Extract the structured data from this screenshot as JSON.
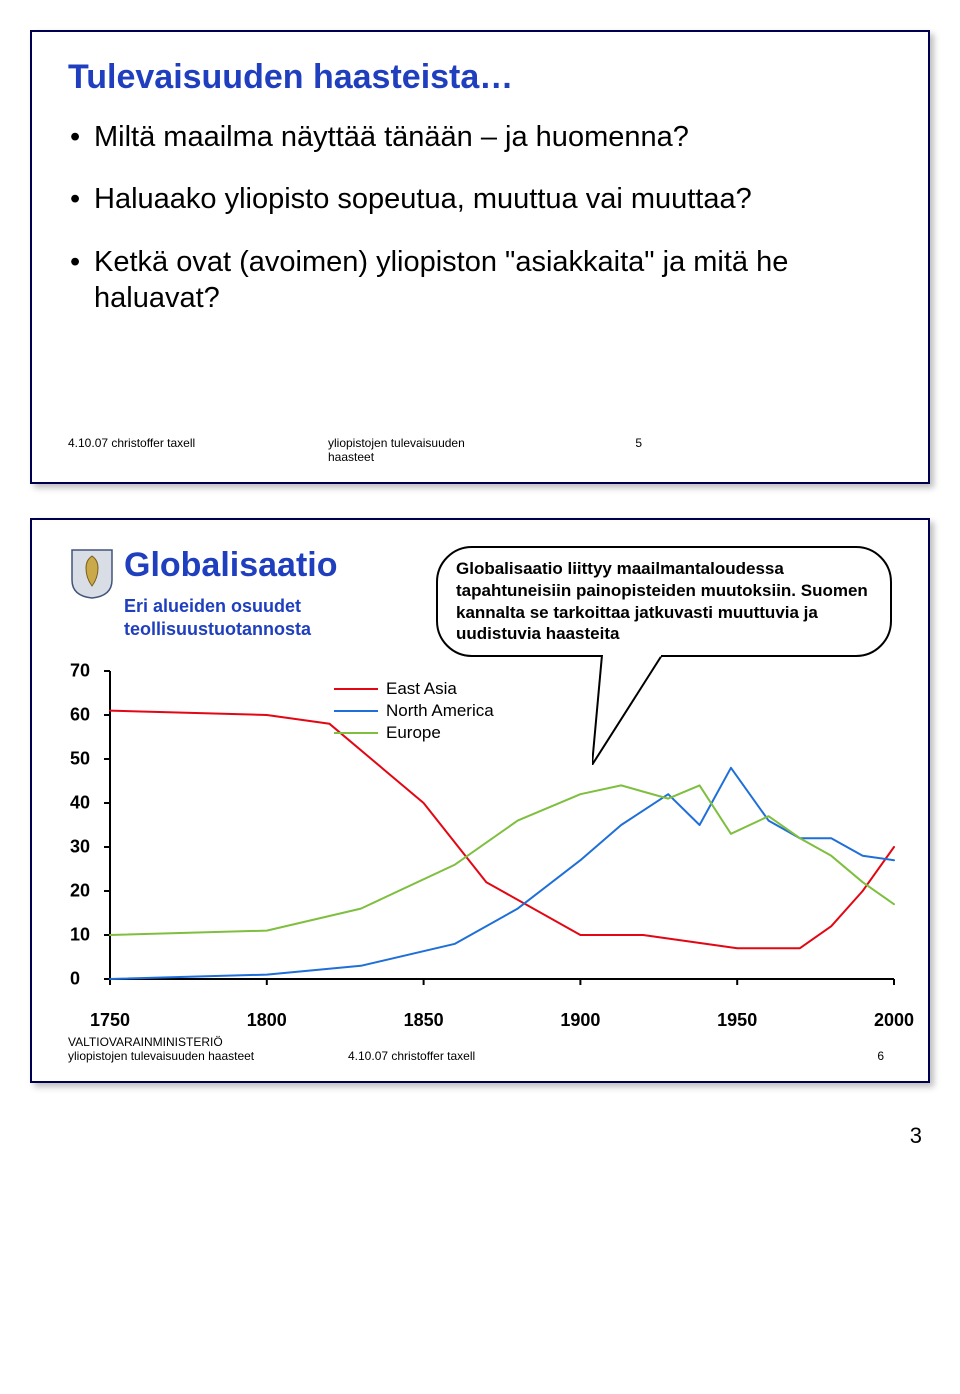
{
  "slide1": {
    "title_color": "#1f3fbf",
    "title": "Tulevaisuuden haasteista…",
    "bullets": [
      "Miltä maailma näyttää tänään – ja huomenna?",
      "Haluaako yliopisto sopeutua, muuttua vai muuttaa?",
      "Ketkä ovat (avoimen) yliopiston \"asiakkaita\" ja mitä he haluavat?"
    ],
    "footer": {
      "left": "4.10.07 christoffer taxell",
      "center": "yliopistojen tulevaisuuden\nhaasteet",
      "page": "5"
    }
  },
  "slide2": {
    "globalisaatio_color": "#1f3fbf",
    "title": "Globalisaatio",
    "subtitle_color": "#1f3fbf",
    "subtitle": "Eri alueiden osuudet teollisuustuotannosta",
    "callout": "Globalisaatio liittyy maailmantaloudessa tapahtuneisiin painopisteiden muutoksiin. Suomen kannalta se tarkoittaa jatkuvasti muuttuvia ja uudistuvia haasteita",
    "chart": {
      "type": "line",
      "background_color": "#ffffff",
      "axis_color": "#000000",
      "line_width": 2,
      "xlim": [
        1750,
        2000
      ],
      "ylim": [
        0,
        70
      ],
      "ytick_step": 10,
      "xtick_step": 50,
      "yticks": [
        0,
        10,
        20,
        30,
        40,
        50,
        60,
        70
      ],
      "xticks": [
        1750,
        1800,
        1850,
        1900,
        1950,
        2000
      ],
      "series": [
        {
          "name": "East Asia",
          "color": "#e30613",
          "data": [
            [
              1750,
              61
            ],
            [
              1800,
              60
            ],
            [
              1820,
              58
            ],
            [
              1850,
              40
            ],
            [
              1870,
              22
            ],
            [
              1900,
              10
            ],
            [
              1920,
              10
            ],
            [
              1950,
              7
            ],
            [
              1970,
              7
            ],
            [
              1980,
              12
            ],
            [
              1990,
              20
            ],
            [
              2000,
              30
            ]
          ]
        },
        {
          "name": "North America",
          "color": "#1f6fd8",
          "data": [
            [
              1750,
              0
            ],
            [
              1800,
              1
            ],
            [
              1830,
              3
            ],
            [
              1860,
              8
            ],
            [
              1880,
              16
            ],
            [
              1900,
              27
            ],
            [
              1913,
              35
            ],
            [
              1928,
              42
            ],
            [
              1938,
              35
            ],
            [
              1948,
              48
            ],
            [
              1960,
              36
            ],
            [
              1970,
              32
            ],
            [
              1980,
              32
            ],
            [
              1990,
              28
            ],
            [
              2000,
              27
            ]
          ]
        },
        {
          "name": "Europe",
          "color": "#7fbf3f",
          "data": [
            [
              1750,
              10
            ],
            [
              1800,
              11
            ],
            [
              1830,
              16
            ],
            [
              1860,
              26
            ],
            [
              1880,
              36
            ],
            [
              1900,
              42
            ],
            [
              1913,
              44
            ],
            [
              1928,
              41
            ],
            [
              1938,
              44
            ],
            [
              1948,
              33
            ],
            [
              1960,
              37
            ],
            [
              1970,
              32
            ],
            [
              1980,
              28
            ],
            [
              1990,
              22
            ],
            [
              2000,
              17
            ]
          ]
        }
      ],
      "legend_fontsize": 17,
      "label_fontsize_pt": 18,
      "label_bold": true
    },
    "footer": {
      "left1": "VALTIOVARAINMINISTERIÖ",
      "left2": "yliopistojen tulevaisuuden haasteet",
      "center": "4.10.07 christoffer taxell",
      "page": "6"
    }
  },
  "doc_page_number": "3"
}
